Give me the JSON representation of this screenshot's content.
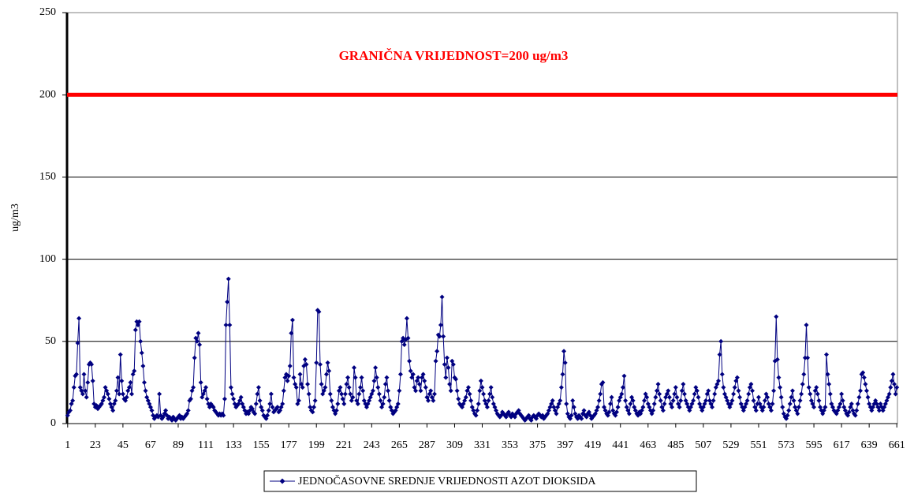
{
  "chart_data": {
    "type": "line",
    "y_label": "ug/m3",
    "annotation": "GRANIČNA VRIJEDNOST=200 ug/m3",
    "reference_line": {
      "value": 200,
      "color": "#ff0000"
    },
    "ylim": [
      0,
      250
    ],
    "yticks": [
      0,
      50,
      100,
      150,
      200,
      250
    ],
    "grid": true,
    "legend": "bottom",
    "categories": [
      1,
      null,
      null,
      null,
      null,
      null,
      null,
      null,
      null,
      null,
      null,
      null,
      null,
      null,
      null,
      null,
      null,
      null,
      null,
      null,
      null,
      null,
      23,
      null,
      null,
      null,
      null,
      null,
      null,
      null,
      null,
      null,
      null,
      null,
      null,
      null,
      null,
      null,
      null,
      null,
      null,
      null,
      null,
      null,
      45,
      null,
      null,
      null,
      null,
      null,
      null,
      null,
      null,
      null,
      null,
      null,
      null,
      null,
      null,
      null,
      null,
      null,
      null,
      null,
      null,
      null,
      67,
      null,
      null,
      null,
      null,
      null,
      null,
      null,
      null,
      null,
      null,
      null,
      null,
      null,
      null,
      null,
      null,
      null,
      null,
      null,
      null,
      null,
      89,
      null,
      null,
      null,
      null,
      null,
      null,
      null,
      null,
      null,
      null,
      null,
      null,
      null,
      null,
      null,
      null,
      null,
      null,
      null,
      null,
      null,
      111,
      null,
      null,
      null,
      null,
      null,
      null,
      null,
      null,
      null,
      null,
      null,
      null,
      null,
      null,
      null,
      null,
      null,
      null,
      null,
      null,
      null,
      133,
      null,
      null,
      null,
      null,
      null,
      null,
      null,
      null,
      null,
      null,
      null,
      null,
      null,
      null,
      null,
      null,
      null,
      null,
      null,
      null,
      null,
      155,
      null,
      null,
      null,
      null,
      null,
      null,
      null,
      null,
      null,
      null,
      null,
      null,
      null,
      null,
      null,
      null,
      null,
      null,
      null,
      null,
      null,
      177,
      null,
      null,
      null,
      null,
      null,
      null,
      null,
      null,
      null,
      null,
      null,
      null,
      null,
      null,
      null,
      null,
      null,
      null,
      null,
      null,
      null,
      199,
      null,
      null,
      null,
      null,
      null,
      null,
      null,
      null,
      null,
      null,
      null,
      null,
      null,
      null,
      null,
      null,
      null,
      null,
      null,
      null,
      null,
      221,
      null,
      null,
      null,
      null,
      null,
      null,
      null,
      null,
      null,
      null,
      null,
      null,
      null,
      null,
      null,
      null,
      null,
      null,
      null,
      null,
      null,
      243,
      null,
      null,
      null,
      null,
      null,
      null,
      null,
      null,
      null,
      null,
      null,
      null,
      null,
      null,
      null,
      null,
      null,
      null,
      null,
      null,
      null,
      265,
      null,
      null,
      null,
      null,
      null,
      null,
      null,
      null,
      null,
      null,
      null,
      null,
      null,
      null,
      null,
      null,
      null,
      null,
      null,
      null,
      null,
      287,
      null,
      null,
      null,
      null,
      null,
      null,
      null,
      null,
      null,
      null,
      null,
      null,
      null,
      null,
      null,
      null,
      null,
      null,
      null,
      null,
      null,
      309,
      null,
      null,
      null,
      null,
      null,
      null,
      null,
      null,
      null,
      null,
      null,
      null,
      null,
      null,
      null,
      null,
      null,
      null,
      null,
      null,
      null,
      331,
      null,
      null,
      null,
      null,
      null,
      null,
      null,
      null,
      null,
      null,
      null,
      null,
      null,
      null,
      null,
      null,
      null,
      null,
      null,
      null,
      null,
      353,
      null,
      null,
      null,
      null,
      null,
      null,
      null,
      null,
      null,
      null,
      null,
      null,
      null,
      null,
      null,
      null,
      null,
      null,
      null,
      null,
      null,
      375,
      null,
      null,
      null,
      null,
      null,
      null,
      null,
      null,
      null,
      null,
      null,
      null,
      null,
      null,
      null,
      null,
      null,
      null,
      null,
      null,
      null,
      397,
      null,
      null,
      null,
      null,
      null,
      null,
      null,
      null,
      null,
      null,
      null,
      null,
      null,
      null,
      null,
      null,
      null,
      null,
      null,
      null,
      null,
      419,
      null,
      null,
      null,
      null,
      null,
      null,
      null,
      null,
      null,
      null,
      null,
      null,
      null,
      null,
      null,
      null,
      null,
      null,
      null,
      null,
      null,
      441,
      null,
      null,
      null,
      null,
      null,
      null,
      null,
      null,
      null,
      null,
      null,
      null,
      null,
      null,
      null,
      null,
      null,
      null,
      null,
      null,
      null,
      463,
      null,
      null,
      null,
      null,
      null,
      null,
      null,
      null,
      null,
      null,
      null,
      null,
      null,
      null,
      null,
      null,
      null,
      null,
      null,
      null,
      null,
      485,
      null,
      null,
      null,
      null,
      null,
      null,
      null,
      null,
      null,
      null,
      null,
      null,
      null,
      null,
      null,
      null,
      null,
      null,
      null,
      null,
      null,
      507,
      null,
      null,
      null,
      null,
      null,
      null,
      null,
      null,
      null,
      null,
      null,
      null,
      null,
      null,
      null,
      null,
      null,
      null,
      null,
      null,
      null,
      529,
      null,
      null,
      null,
      null,
      null,
      null,
      null,
      null,
      null,
      null,
      null,
      null,
      null,
      null,
      null,
      null,
      null,
      null,
      null,
      null,
      null,
      551,
      null,
      null,
      null,
      null,
      null,
      null,
      null,
      null,
      null,
      null,
      null,
      null,
      null,
      null,
      null,
      null,
      null,
      null,
      null,
      null,
      null,
      573,
      null,
      null,
      null,
      null,
      null,
      null,
      null,
      null,
      null,
      null,
      null,
      null,
      null,
      null,
      null,
      null,
      null,
      null,
      null,
      null,
      null,
      595,
      null,
      null,
      null,
      null,
      null,
      null,
      null,
      null,
      null,
      null,
      null,
      null,
      null,
      null,
      null,
      null,
      null,
      null,
      null,
      null,
      null,
      617,
      null,
      null,
      null,
      null,
      null,
      null,
      null,
      null,
      null,
      null,
      null,
      null,
      null,
      null,
      null,
      null,
      null,
      null,
      null,
      null,
      null,
      639,
      null,
      null,
      null,
      null,
      null,
      null,
      null,
      null,
      null,
      null,
      null,
      null,
      null,
      null,
      null,
      null,
      null,
      null,
      null,
      null,
      null,
      661
    ],
    "series": [
      {
        "name": "JEDNOČASOVNE SREDNJE VRIJEDNOSTI AZOT DIOKSIDA",
        "color": "#000080",
        "values": [
          5,
          7,
          8,
          12,
          14,
          22,
          29,
          30,
          49,
          64,
          22,
          20,
          18,
          30,
          20,
          16,
          25,
          36,
          37,
          36,
          26,
          12,
          10,
          11,
          9,
          10,
          11,
          12,
          14,
          16,
          22,
          20,
          18,
          15,
          12,
          10,
          8,
          12,
          14,
          20,
          28,
          18,
          42,
          26,
          18,
          15,
          14,
          16,
          20,
          22,
          25,
          18,
          30,
          32,
          57,
          62,
          60,
          62,
          50,
          43,
          35,
          25,
          20,
          16,
          14,
          12,
          10,
          8,
          5,
          3,
          4,
          5,
          4,
          18,
          5,
          3,
          4,
          6,
          8,
          5,
          3,
          4,
          3,
          2,
          4,
          3,
          2,
          3,
          4,
          5,
          3,
          4,
          3,
          4,
          5,
          6,
          8,
          14,
          15,
          20,
          22,
          40,
          52,
          50,
          55,
          48,
          25,
          16,
          18,
          20,
          22,
          15,
          12,
          10,
          12,
          11,
          10,
          8,
          7,
          6,
          5,
          6,
          5,
          6,
          5,
          15,
          60,
          74,
          88,
          60,
          22,
          18,
          15,
          12,
          10,
          11,
          12,
          14,
          16,
          12,
          10,
          8,
          6,
          7,
          6,
          8,
          10,
          9,
          7,
          6,
          12,
          18,
          22,
          14,
          10,
          8,
          5,
          4,
          3,
          5,
          8,
          12,
          18,
          10,
          7,
          8,
          9,
          10,
          7,
          8,
          10,
          12,
          20,
          28,
          30,
          26,
          29,
          35,
          55,
          63,
          28,
          24,
          22,
          12,
          14,
          30,
          24,
          22,
          35,
          39,
          36,
          24,
          18,
          10,
          8,
          7,
          10,
          14,
          37,
          69,
          68,
          36,
          24,
          18,
          20,
          22,
          30,
          37,
          32,
          18,
          14,
          10,
          8,
          6,
          8,
          12,
          20,
          22,
          18,
          15,
          12,
          18,
          24,
          28,
          22,
          18,
          14,
          16,
          34,
          28,
          14,
          12,
          18,
          22,
          28,
          20,
          14,
          12,
          10,
          12,
          14,
          16,
          18,
          20,
          26,
          34,
          28,
          22,
          18,
          14,
          10,
          12,
          16,
          24,
          28,
          20,
          14,
          10,
          8,
          6,
          7,
          8,
          10,
          12,
          20,
          30,
          50,
          52,
          48,
          51,
          64,
          52,
          38,
          32,
          28,
          30,
          22,
          20,
          26,
          28,
          24,
          20,
          28,
          30,
          26,
          22,
          16,
          14,
          18,
          20,
          16,
          14,
          18,
          38,
          44,
          54,
          53,
          60,
          77,
          53,
          36,
          28,
          40,
          34,
          24,
          20,
          38,
          36,
          28,
          27,
          20,
          15,
          12,
          11,
          10,
          12,
          14,
          16,
          20,
          22,
          18,
          14,
          10,
          8,
          6,
          5,
          8,
          12,
          20,
          26,
          22,
          18,
          14,
          12,
          10,
          14,
          18,
          22,
          16,
          12,
          10,
          8,
          6,
          5,
          4,
          5,
          7,
          6,
          5,
          4,
          6,
          7,
          5,
          4,
          6,
          5,
          4,
          6,
          7,
          8,
          6,
          5,
          4,
          3,
          2,
          3,
          4,
          5,
          3,
          2,
          4,
          5,
          4,
          3,
          5,
          6,
          5,
          4,
          5,
          3,
          4,
          5,
          6,
          8,
          10,
          12,
          14,
          10,
          8,
          6,
          10,
          12,
          14,
          22,
          30,
          44,
          37,
          12,
          6,
          4,
          3,
          5,
          14,
          10,
          6,
          4,
          3,
          5,
          4,
          3,
          6,
          8,
          5,
          4,
          6,
          7,
          5,
          3,
          4,
          5,
          6,
          8,
          10,
          14,
          18,
          24,
          25,
          10,
          8,
          6,
          5,
          7,
          12,
          16,
          8,
          6,
          5,
          7,
          10,
          14,
          16,
          18,
          22,
          29,
          14,
          10,
          8,
          6,
          12,
          16,
          14,
          10,
          8,
          6,
          5,
          7,
          6,
          8,
          10,
          14,
          18,
          16,
          12,
          10,
          8,
          6,
          8,
          12,
          16,
          20,
          24,
          18,
          14,
          10,
          8,
          12,
          16,
          18,
          20,
          16,
          12,
          10,
          14,
          18,
          22,
          16,
          12,
          10,
          14,
          20,
          24,
          18,
          14,
          12,
          10,
          8,
          10,
          12,
          14,
          18,
          22,
          20,
          16,
          12,
          10,
          8,
          10,
          12,
          14,
          18,
          20,
          14,
          12,
          10,
          14,
          18,
          22,
          24,
          26,
          42,
          50,
          30,
          22,
          18,
          16,
          14,
          12,
          10,
          12,
          14,
          18,
          22,
          26,
          28,
          20,
          16,
          12,
          10,
          8,
          10,
          12,
          14,
          18,
          22,
          24,
          20,
          14,
          10,
          8,
          12,
          16,
          12,
          10,
          8,
          10,
          14,
          18,
          16,
          12,
          10,
          8,
          12,
          20,
          38,
          65,
          39,
          28,
          22,
          16,
          10,
          6,
          4,
          3,
          5,
          8,
          12,
          16,
          20,
          14,
          10,
          8,
          6,
          10,
          14,
          18,
          24,
          30,
          40,
          60,
          40,
          22,
          18,
          14,
          12,
          10,
          20,
          22,
          18,
          14,
          10,
          8,
          6,
          8,
          10,
          42,
          30,
          24,
          18,
          12,
          10,
          8,
          7,
          6,
          8,
          10,
          12,
          18,
          14,
          10,
          8,
          6,
          5,
          7,
          10,
          12,
          8,
          6,
          5,
          8,
          12,
          16,
          20,
          30,
          31,
          28,
          24,
          20,
          16,
          12,
          10,
          8,
          10,
          12,
          14,
          12,
          10,
          8,
          12,
          10,
          8,
          10,
          12,
          14,
          16,
          18,
          22,
          26,
          30,
          24,
          18,
          22
        ]
      }
    ]
  }
}
